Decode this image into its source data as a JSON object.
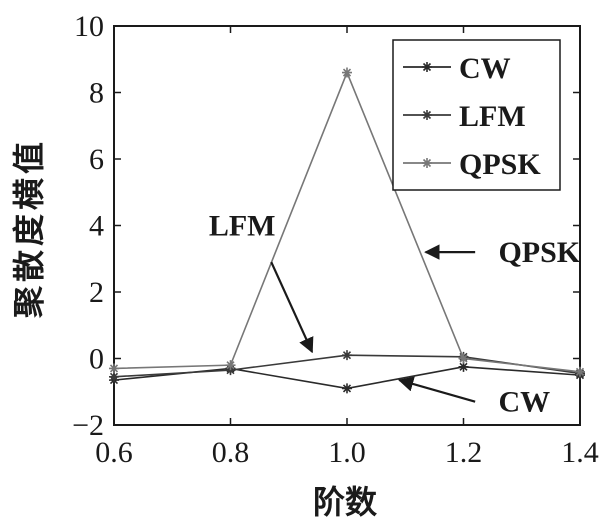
{
  "chart_data": {
    "type": "line",
    "xlabel": "阶数",
    "ylabel": "聚散度横值",
    "xlim": [
      0.6,
      1.4
    ],
    "ylim": [
      -2,
      10
    ],
    "xticks": [
      0.6,
      0.8,
      1.0,
      1.2,
      1.4
    ],
    "xtick_labels": [
      "0.6",
      "0.8",
      "1.0",
      "1.2",
      "1.4"
    ],
    "yticks": [
      -2,
      0,
      2,
      4,
      6,
      8,
      10
    ],
    "ytick_labels": [
      "−2",
      "0",
      "2",
      "4",
      "6",
      "8",
      "10"
    ],
    "grid": false,
    "legend_position": "top-right",
    "x": [
      0.6,
      0.8,
      1.0,
      1.2,
      1.4
    ],
    "series": [
      {
        "name": "CW",
        "values": [
          -0.65,
          -0.3,
          -0.9,
          -0.25,
          -0.5
        ],
        "color": "#2a2a2a"
      },
      {
        "name": "LFM",
        "values": [
          -0.55,
          -0.35,
          0.1,
          0.05,
          -0.45
        ],
        "color": "#3a3a3a"
      },
      {
        "name": "QPSK",
        "values": [
          -0.3,
          -0.2,
          8.6,
          0.0,
          -0.4
        ],
        "color": "#777777"
      }
    ],
    "annotations": [
      {
        "text": "LFM",
        "text_x": 0.82,
        "text_y": 4.0,
        "arrow_from": [
          0.87,
          2.9
        ],
        "arrow_to": [
          0.94,
          0.2
        ]
      },
      {
        "text": "QPSK",
        "text_x": 1.26,
        "text_y": 3.2,
        "arrow_from": [
          1.22,
          3.2
        ],
        "arrow_to": [
          1.135,
          3.2
        ]
      },
      {
        "text": "CW",
        "text_x": 1.26,
        "text_y": -1.3,
        "arrow_from": [
          1.22,
          -1.3
        ],
        "arrow_to": [
          1.09,
          -0.65
        ]
      }
    ]
  }
}
